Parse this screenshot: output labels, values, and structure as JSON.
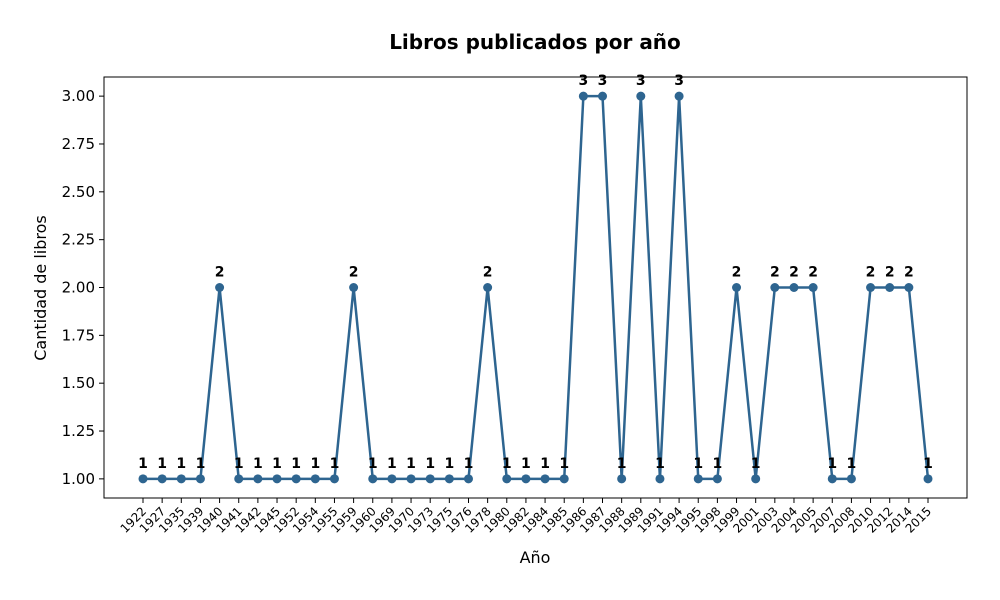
{
  "chart_data": {
    "type": "line",
    "title": "Libros publicados por año",
    "xlabel": "Año",
    "ylabel": "Cantidad de libros",
    "categories": [
      "1922",
      "1927",
      "1935",
      "1939",
      "1940",
      "1941",
      "1942",
      "1945",
      "1952",
      "1954",
      "1955",
      "1959",
      "1960",
      "1969",
      "1970",
      "1973",
      "1975",
      "1976",
      "1978",
      "1980",
      "1982",
      "1984",
      "1985",
      "1986",
      "1987",
      "1988",
      "1989",
      "1991",
      "1994",
      "1995",
      "1998",
      "1999",
      "2001",
      "2003",
      "2004",
      "2005",
      "2007",
      "2008",
      "2010",
      "2012",
      "2014",
      "2015"
    ],
    "values": [
      1,
      1,
      1,
      1,
      2,
      1,
      1,
      1,
      1,
      1,
      1,
      2,
      1,
      1,
      1,
      1,
      1,
      1,
      2,
      1,
      1,
      1,
      1,
      3,
      3,
      1,
      3,
      1,
      3,
      1,
      1,
      2,
      1,
      2,
      2,
      2,
      1,
      1,
      2,
      2,
      2,
      1
    ],
    "yticks": [
      "1.00",
      "1.25",
      "1.50",
      "1.75",
      "2.00",
      "2.25",
      "2.50",
      "2.75",
      "3.00"
    ],
    "ylim": [
      0.9,
      3.1
    ],
    "grid": false,
    "line_color": "#2e6590",
    "data_labels": true
  }
}
